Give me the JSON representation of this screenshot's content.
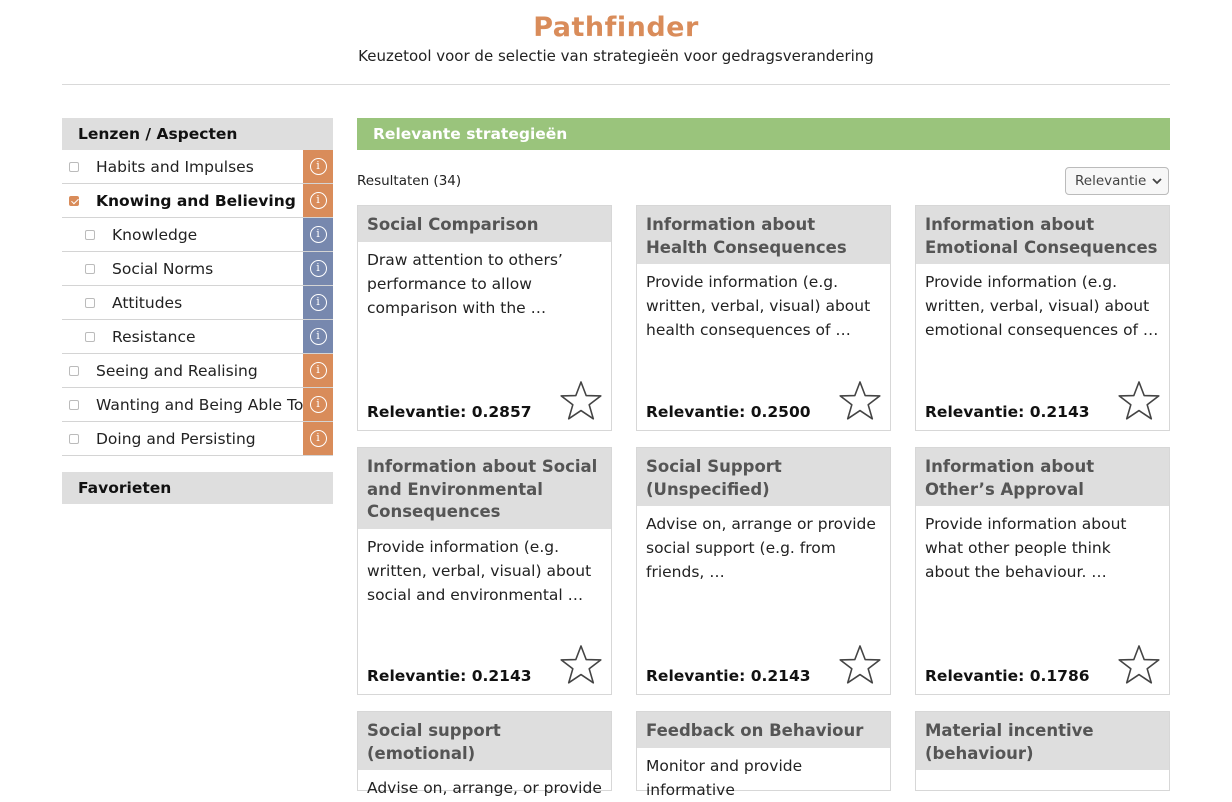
{
  "header": {
    "title": "Pathfinder",
    "subtitle": "Keuzetool voor de selectie van strategieën voor gedragsverandering"
  },
  "sidebar": {
    "heading": "Lenzen / Aspecten",
    "items": [
      {
        "label": "Habits and Impulses",
        "checked": false,
        "child": false,
        "info_color": "#d98c5a"
      },
      {
        "label": "Knowing and Believing",
        "checked": true,
        "child": false,
        "info_color": "#d98c5a"
      },
      {
        "label": "Knowledge",
        "checked": false,
        "child": true,
        "info_color": "#7788ae"
      },
      {
        "label": "Social Norms",
        "checked": false,
        "child": true,
        "info_color": "#7788ae"
      },
      {
        "label": "Attitudes",
        "checked": false,
        "child": true,
        "info_color": "#7788ae"
      },
      {
        "label": "Resistance",
        "checked": false,
        "child": true,
        "info_color": "#7788ae"
      },
      {
        "label": "Seeing and Realising",
        "checked": false,
        "child": false,
        "info_color": "#d98c5a"
      },
      {
        "label": "Wanting and Being Able To",
        "checked": false,
        "child": false,
        "info_color": "#d98c5a"
      },
      {
        "label": "Doing and Persisting",
        "checked": false,
        "child": false,
        "info_color": "#d98c5a"
      }
    ],
    "info_glyph": "i",
    "favorites_heading": "Favorieten"
  },
  "main": {
    "heading": "Relevante strategieën",
    "results_label": "Resultaten (34)",
    "sort_value": "Relevantie",
    "cards": [
      {
        "title": "Social Comparison",
        "description": "Draw attention to others’ performance to allow comparison with the …",
        "relevance": "Relevantie: 0.2857"
      },
      {
        "title": "Information about Health Consequences",
        "description": "Provide information (e.g. written, verbal, visual) about health consequences of …",
        "relevance": "Relevantie: 0.2500"
      },
      {
        "title": "Information about Emotional Consequences",
        "description": "Provide information (e.g. written, verbal, visual) about emotional consequences of …",
        "relevance": "Relevantie: 0.2143"
      },
      {
        "title": "Information about Social and Environmental Consequences",
        "description": "Provide information (e.g. written, verbal, visual) about social and environmental …",
        "relevance": "Relevantie: 0.2143"
      },
      {
        "title": "Social Support (Unspecified)",
        "description": "Advise on, arrange or provide social support (e.g. from friends, …",
        "relevance": "Relevantie: 0.2143"
      },
      {
        "title": "Information about Other’s Approval",
        "description": "Provide information about what other people think about the behaviour. …",
        "relevance": "Relevantie: 0.1786"
      },
      {
        "title": "Social support (emotional)",
        "description": "Advise on, arrange, or provide",
        "relevance": ""
      },
      {
        "title": "Feedback on Behaviour",
        "description": "Monitor and provide informative",
        "relevance": ""
      },
      {
        "title": "Material incentive (behaviour)",
        "description": "",
        "relevance": ""
      }
    ]
  }
}
